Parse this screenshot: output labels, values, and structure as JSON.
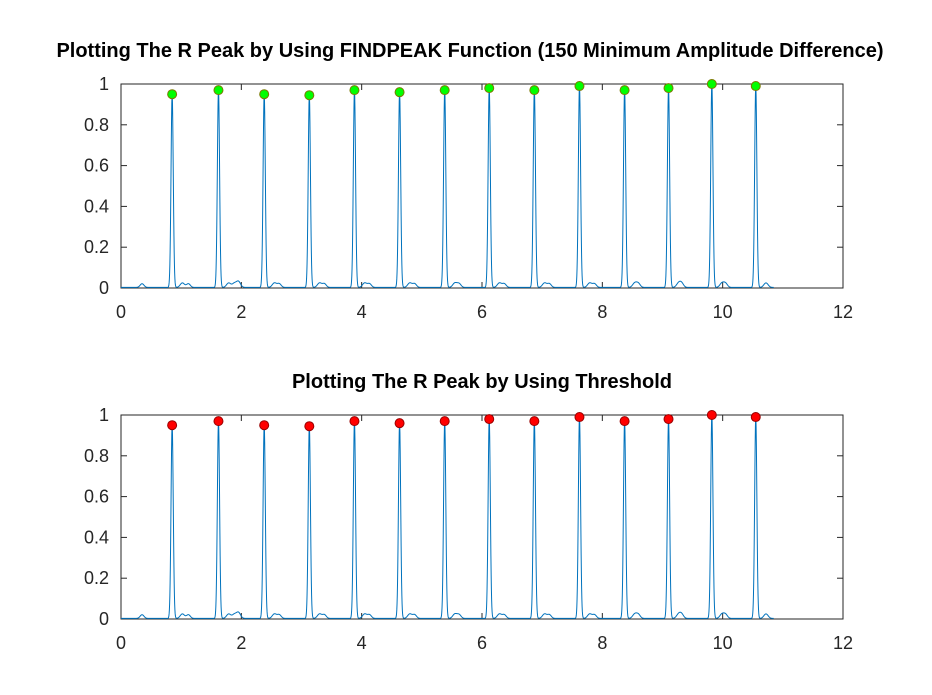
{
  "chart_data": [
    {
      "type": "line",
      "title": "Plotting The R Peak by Using FINDPEAK Function (150 Minimum Amplitude Difference)",
      "xlim": [
        0,
        12
      ],
      "ylim": [
        0,
        1
      ],
      "xticks": [
        "0",
        "2",
        "4",
        "6",
        "8",
        "10",
        "12"
      ],
      "yticks": [
        "0",
        "0.2",
        "0.4",
        "0.6",
        "0.8",
        "1"
      ],
      "signal_color": "#0072bd",
      "marker_color": "#00ff00",
      "signal_end": 10.85,
      "peaks": [
        {
          "x": 0.85,
          "y": 0.95
        },
        {
          "x": 1.62,
          "y": 0.97
        },
        {
          "x": 2.38,
          "y": 0.95
        },
        {
          "x": 3.13,
          "y": 0.945
        },
        {
          "x": 3.88,
          "y": 0.97
        },
        {
          "x": 4.63,
          "y": 0.96
        },
        {
          "x": 5.38,
          "y": 0.97
        },
        {
          "x": 6.12,
          "y": 0.98
        },
        {
          "x": 6.87,
          "y": 0.97
        },
        {
          "x": 7.62,
          "y": 0.99
        },
        {
          "x": 8.37,
          "y": 0.97
        },
        {
          "x": 9.1,
          "y": 0.98
        },
        {
          "x": 9.82,
          "y": 1.0
        },
        {
          "x": 10.55,
          "y": 0.99
        }
      ]
    },
    {
      "type": "line",
      "title": "Plotting The R Peak by Using Threshold",
      "xlim": [
        0,
        12
      ],
      "ylim": [
        0,
        1
      ],
      "xticks": [
        "0",
        "2",
        "4",
        "6",
        "8",
        "10",
        "12"
      ],
      "yticks": [
        "0",
        "0.2",
        "0.4",
        "0.6",
        "0.8",
        "1"
      ],
      "signal_color": "#0072bd",
      "marker_color": "#ff0000",
      "signal_end": 10.85,
      "peaks": [
        {
          "x": 0.85,
          "y": 0.95
        },
        {
          "x": 1.62,
          "y": 0.97
        },
        {
          "x": 2.38,
          "y": 0.95
        },
        {
          "x": 3.13,
          "y": 0.945
        },
        {
          "x": 3.88,
          "y": 0.97
        },
        {
          "x": 4.63,
          "y": 0.96
        },
        {
          "x": 5.38,
          "y": 0.97
        },
        {
          "x": 6.12,
          "y": 0.98
        },
        {
          "x": 6.87,
          "y": 0.97
        },
        {
          "x": 7.62,
          "y": 0.99
        },
        {
          "x": 8.37,
          "y": 0.97
        },
        {
          "x": 9.1,
          "y": 0.98
        },
        {
          "x": 9.82,
          "y": 1.0
        },
        {
          "x": 10.55,
          "y": 0.99
        }
      ]
    }
  ]
}
